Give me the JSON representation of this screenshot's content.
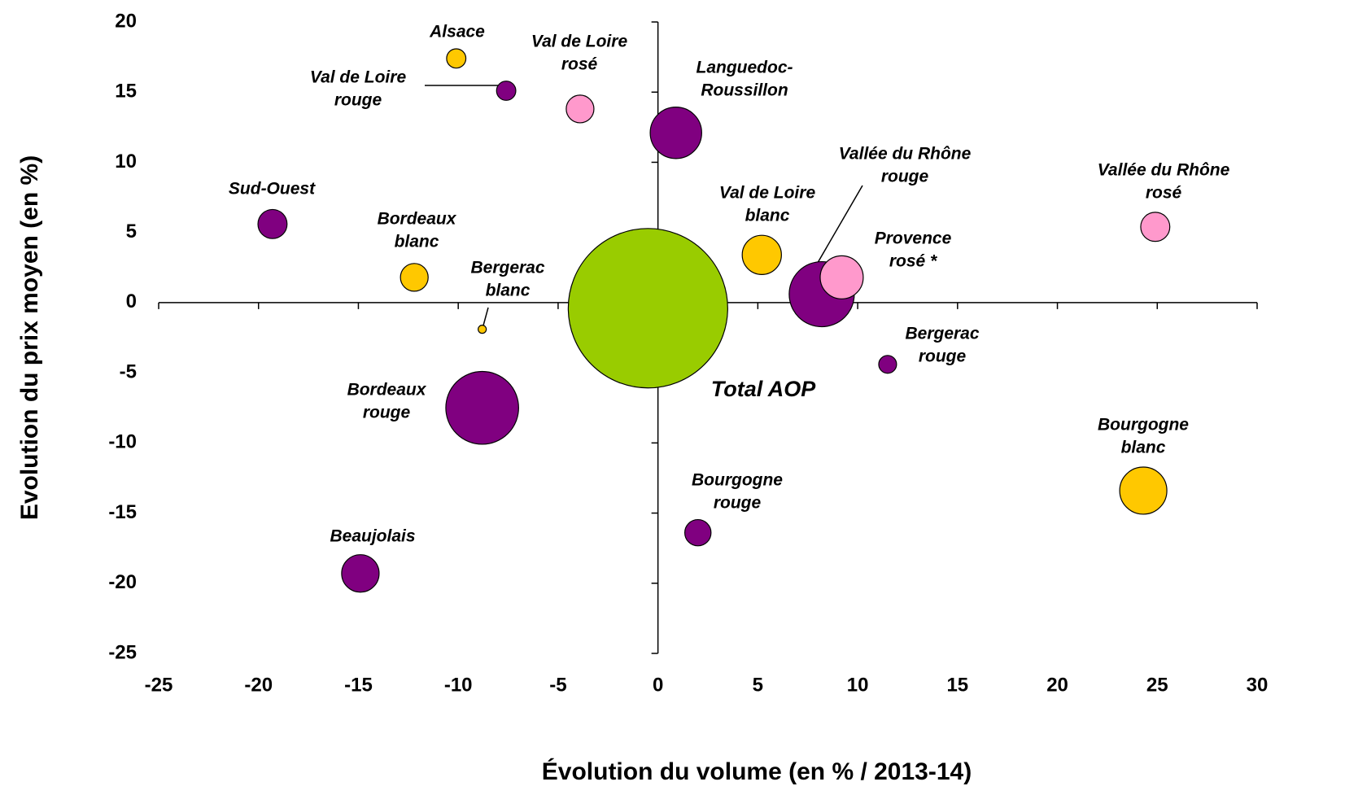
{
  "chart_data": {
    "type": "bubble",
    "x_label": "Évolution du volume (en % / 2013-14)",
    "y_label": "Evolution du prix moyen (en %)",
    "xlim": [
      -25,
      30
    ],
    "xticks": [
      -25,
      -20,
      -15,
      -10,
      -5,
      0,
      5,
      10,
      15,
      20,
      25,
      30
    ],
    "ylim": [
      -25,
      20
    ],
    "yticks": [
      -25,
      -20,
      -15,
      -10,
      -5,
      0,
      5,
      10,
      15,
      20
    ],
    "points": [
      {
        "label": [
          "Total AOP"
        ],
        "x": -0.5,
        "y": -0.4,
        "size": 96,
        "color": "#99cc00"
      },
      {
        "label": [
          "Bordeaux",
          "rouge"
        ],
        "x": -8.8,
        "y": -7.5,
        "size": 20,
        "color": "#800080"
      },
      {
        "label": [
          "Vallée du Rhône",
          "rouge"
        ],
        "x": 8.2,
        "y": 0.6,
        "size": 16,
        "color": "#800080"
      },
      {
        "label": [
          "Languedoc-",
          "Roussillon"
        ],
        "x": 0.9,
        "y": 12.1,
        "size": 10,
        "color": "#800080"
      },
      {
        "label": [
          "Provence",
          "rosé *"
        ],
        "x": 9.2,
        "y": 1.8,
        "size": 7,
        "color": "#ff99cc"
      },
      {
        "label": [
          "Bourgogne",
          "blanc"
        ],
        "x": 24.3,
        "y": -13.4,
        "size": 8.4,
        "color": "#ffc800"
      },
      {
        "label": [
          "Val de Loire",
          "blanc"
        ],
        "x": 5.2,
        "y": 3.4,
        "size": 5.8,
        "color": "#ffc800"
      },
      {
        "label": [
          "Beaujolais"
        ],
        "x": -14.9,
        "y": -19.3,
        "size": 5.3,
        "color": "#800080"
      },
      {
        "label": [
          "Vallée du Rhône",
          "rosé"
        ],
        "x": 24.9,
        "y": 5.4,
        "size": 3.2,
        "color": "#ff99cc"
      },
      {
        "label": [
          "Sud-Ouest"
        ],
        "x": -19.3,
        "y": 5.6,
        "size": 3.2,
        "color": "#800080"
      },
      {
        "label": [
          "Bordeaux",
          "blanc"
        ],
        "x": -12.2,
        "y": 1.8,
        "size": 2.9,
        "color": "#ffc800"
      },
      {
        "label": [
          "Val de Loire",
          "rosé"
        ],
        "x": -3.9,
        "y": 13.8,
        "size": 2.9,
        "color": "#ff99cc"
      },
      {
        "label": [
          "Bourgogne",
          "rouge"
        ],
        "x": 2.0,
        "y": -16.4,
        "size": 2.6,
        "color": "#800080"
      },
      {
        "label": [
          "Alsace"
        ],
        "x": -10.1,
        "y": 17.4,
        "size": 1.4,
        "color": "#ffc800"
      },
      {
        "label": [
          "Val de Loire",
          "rouge"
        ],
        "x": -7.6,
        "y": 15.1,
        "size": 1.4,
        "color": "#800080"
      },
      {
        "label": [
          "Bergerac",
          "rouge"
        ],
        "x": 11.5,
        "y": -4.4,
        "size": 1.2,
        "color": "#800080"
      },
      {
        "label": [
          "Bergerac",
          "blanc"
        ],
        "x": -8.8,
        "y": -1.9,
        "size": 0.25,
        "color": "#ffc800"
      }
    ]
  }
}
